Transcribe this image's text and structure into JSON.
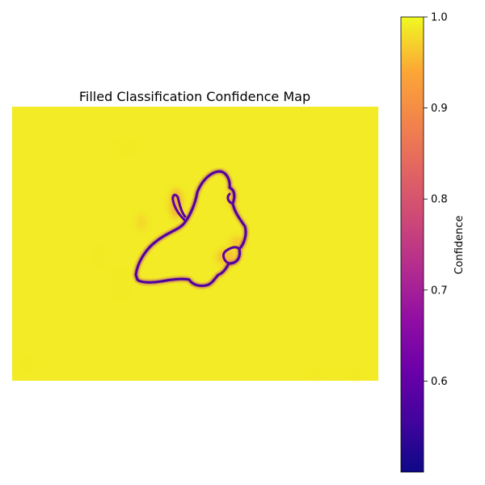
{
  "chart_data": {
    "type": "heatmap",
    "title": "Filled Classification Confidence Map",
    "colormap": "plasma",
    "axes_visible": false,
    "background_value": 0.99,
    "regions": [
      {
        "kind": "object-boundary",
        "shape": "butterfly",
        "value": 0.55
      },
      {
        "kind": "halo-near-boundary",
        "value": 0.93
      }
    ],
    "colorbar": {
      "label": "Confidence",
      "vmin": 0.5,
      "vmax": 1.0,
      "ticks": [
        0.6,
        0.7,
        0.8,
        0.9,
        1.0
      ],
      "tick_labels": [
        "0.6",
        "0.7",
        "0.8",
        "0.9",
        "1.0"
      ]
    }
  }
}
